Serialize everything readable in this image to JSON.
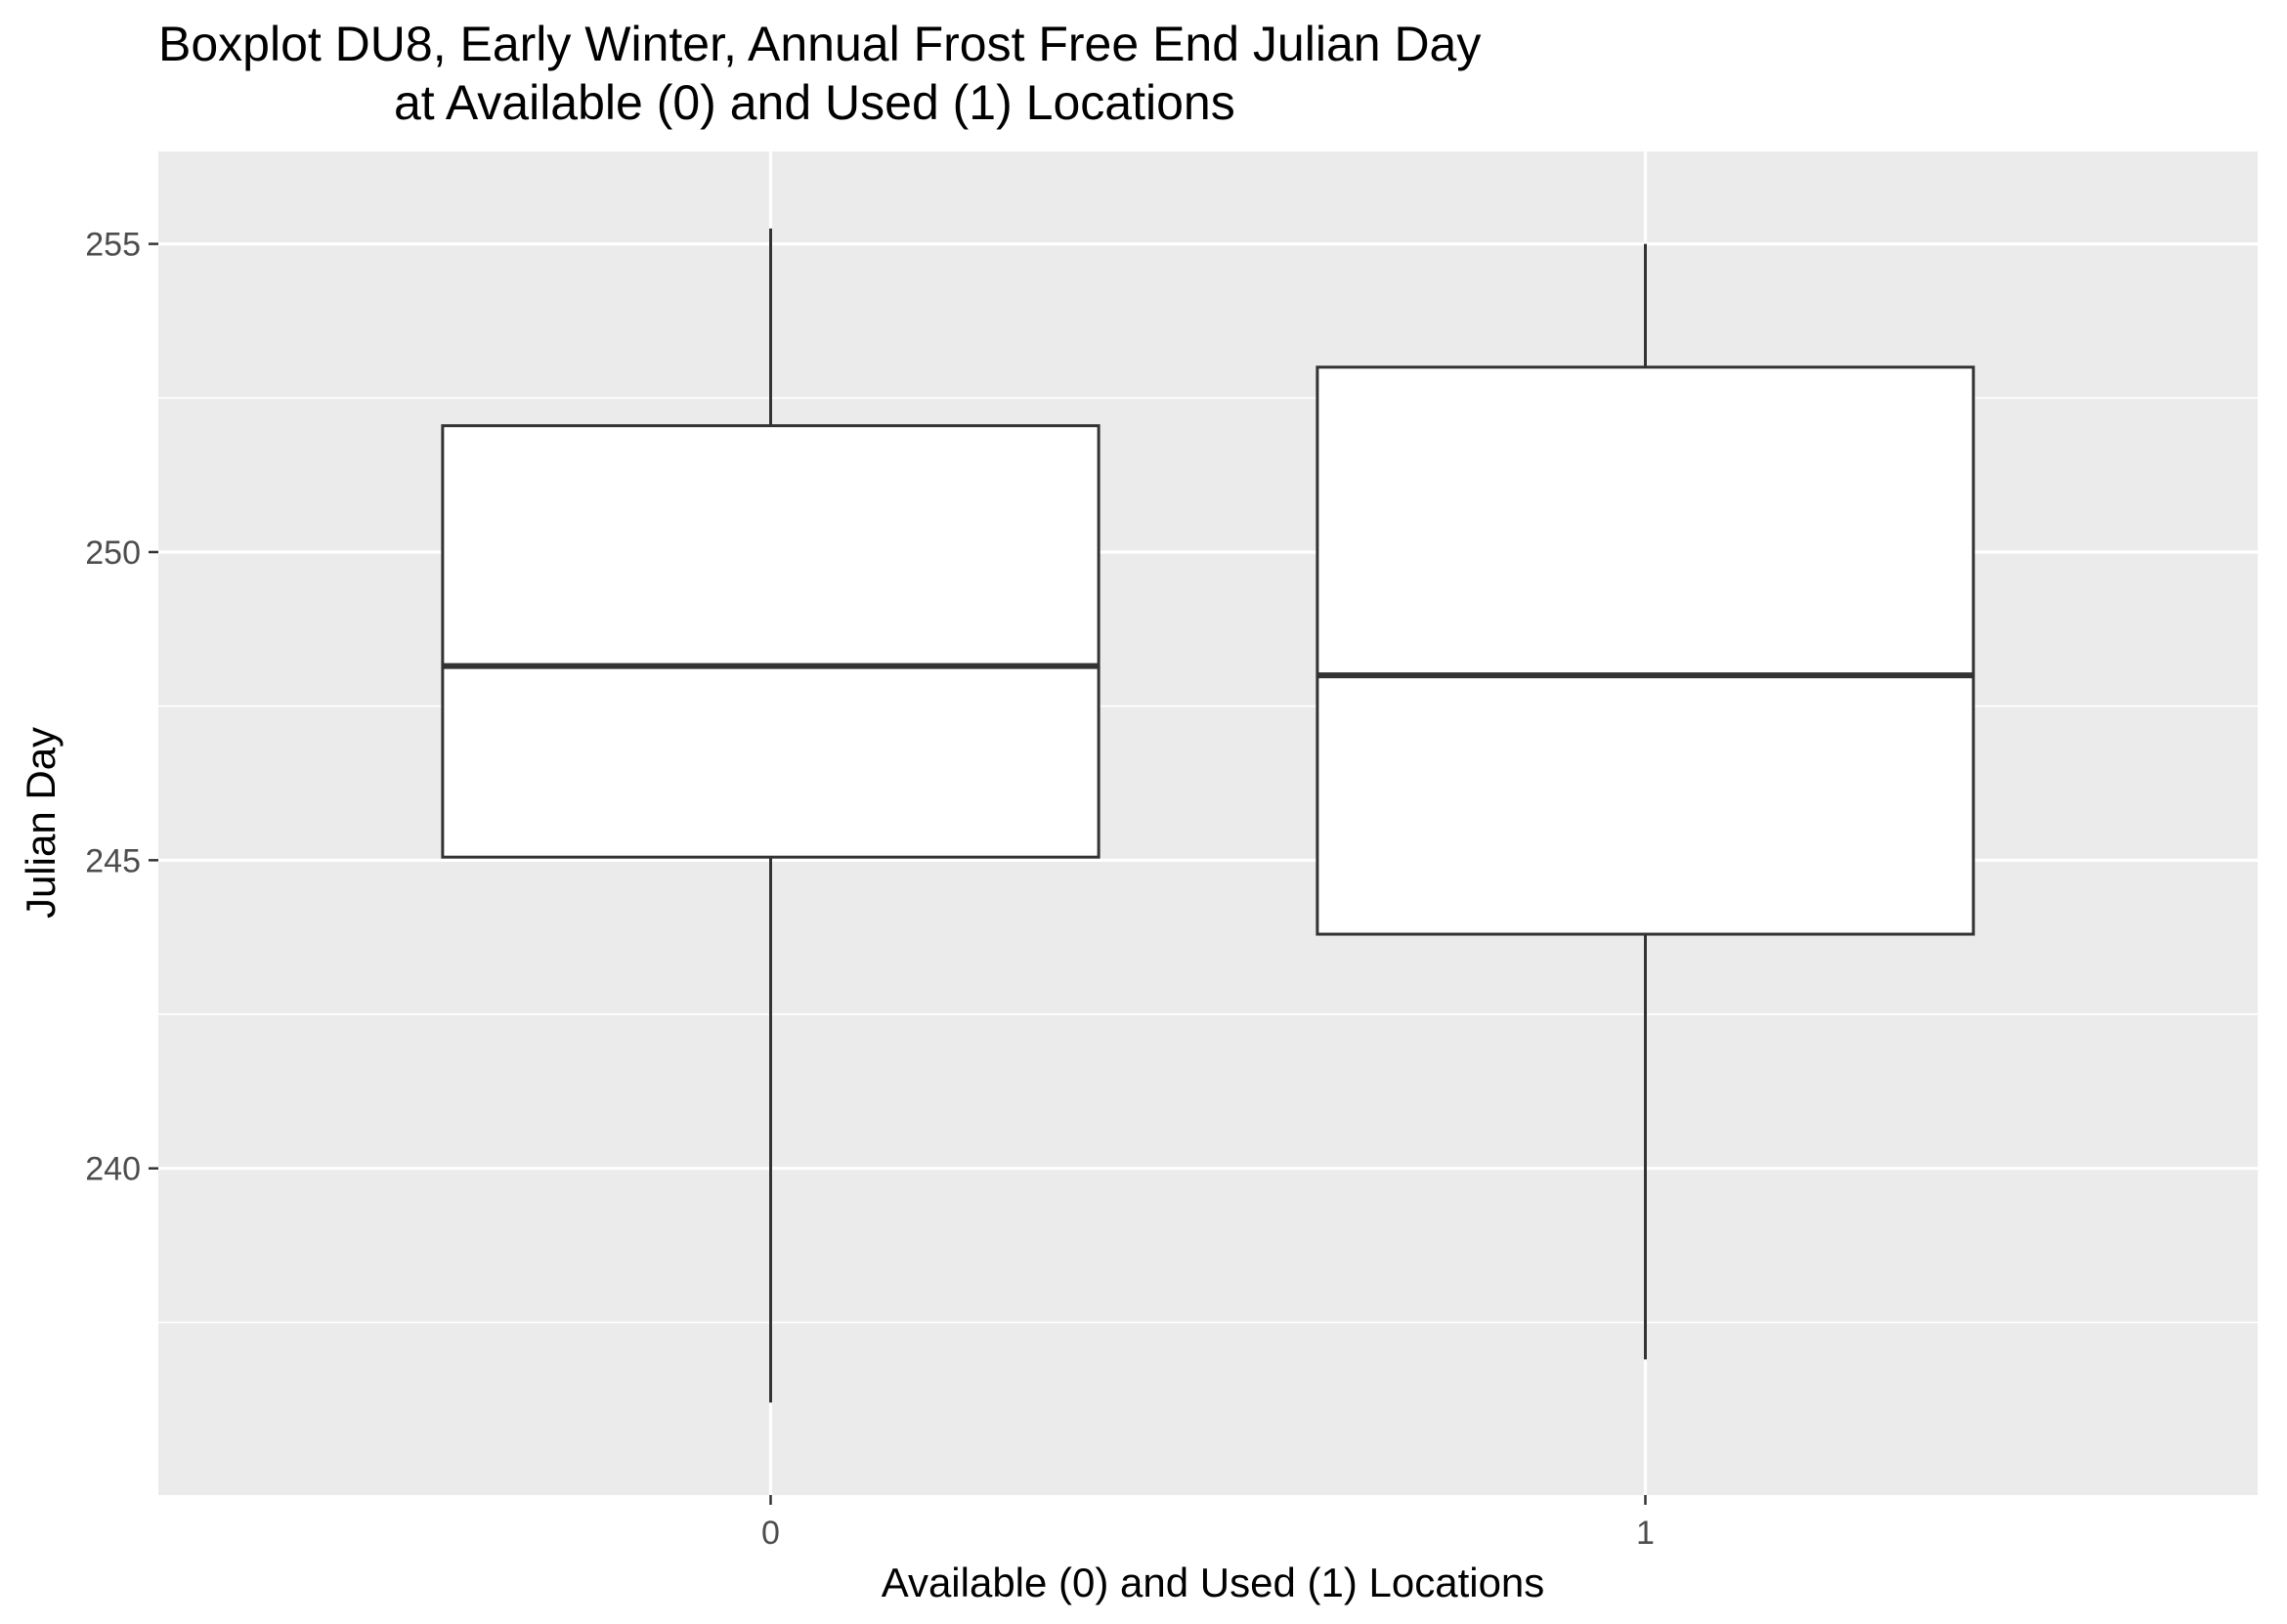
{
  "chart_data": {
    "type": "boxplot",
    "title": "Boxplot DU8, Early Winter, Annual Frost Free End Julian Day",
    "subtitle": "at Available (0) and Used (1) Locations",
    "xlabel": "Available (0) and Used (1) Locations",
    "ylabel": "Julian Day",
    "categories": [
      "0",
      "1"
    ],
    "boxes": [
      {
        "category": "0",
        "min": 236.2,
        "q1": 245.05,
        "median": 248.15,
        "q3": 252.05,
        "max": 255.25
      },
      {
        "category": "1",
        "min": 236.9,
        "q1": 243.8,
        "median": 248.0,
        "q3": 253.0,
        "max": 255.0
      }
    ],
    "ylim": [
      234.7,
      256.5
    ],
    "y_ticks": [
      240,
      245,
      250,
      255
    ],
    "y_minor_ticks": [
      237.5,
      242.5,
      247.5,
      252.5
    ],
    "grid": true,
    "colors": {
      "panel_background": "#ebebeb",
      "grid": "#ffffff",
      "box_fill": "#ffffff",
      "box_stroke": "#333333",
      "tick_text": "#4d4d4d",
      "tick_mark": "#333333"
    }
  }
}
